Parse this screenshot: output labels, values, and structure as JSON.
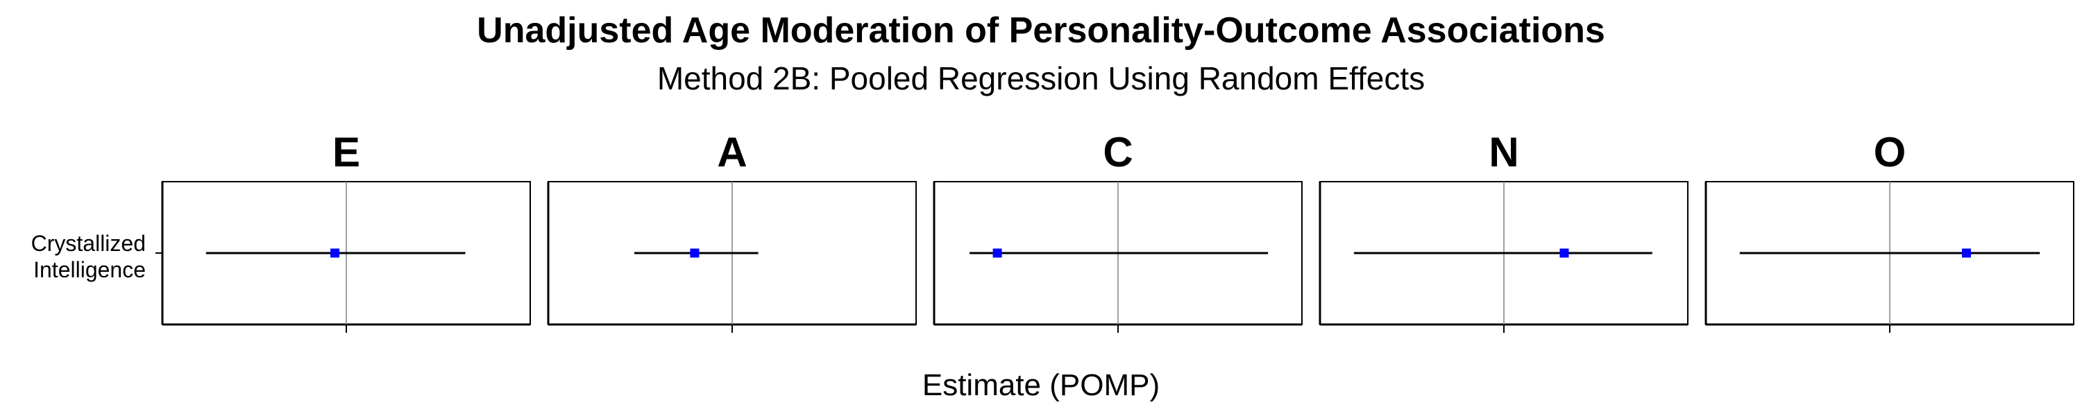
{
  "chart_data": {
    "type": "forest",
    "title": "Unadjusted Age Moderation of Personality-Outcome Associations",
    "subtitle": "Method 2B: Pooled Regression Using Random Effects",
    "xlabel": "Estimate (POMP)",
    "ylabel": "",
    "row_label_lines": [
      "Crystallized",
      "Intelligence"
    ],
    "reference_line": 0,
    "colors": {
      "point": "#0000ff",
      "ci_line": "#000000",
      "reference_line": "#808080",
      "frame": "#000000"
    },
    "panels": [
      {
        "facet": "E",
        "xlim": [
          -1,
          1
        ],
        "estimate": -0.07,
        "ci_low": -0.86,
        "ci_high": 0.73
      },
      {
        "facet": "A",
        "xlim": [
          -1,
          1
        ],
        "estimate": -0.23,
        "ci_low": -0.6,
        "ci_high": 0.16
      },
      {
        "facet": "C",
        "xlim": [
          -1,
          1
        ],
        "estimate": -0.74,
        "ci_low": -0.91,
        "ci_high": 0.92
      },
      {
        "facet": "N",
        "xlim": [
          -1,
          1
        ],
        "estimate": 0.37,
        "ci_low": -0.92,
        "ci_high": 0.91
      },
      {
        "facet": "O",
        "xlim": [
          -1,
          1
        ],
        "estimate": 0.47,
        "ci_low": -0.92,
        "ci_high": 0.92
      }
    ]
  }
}
